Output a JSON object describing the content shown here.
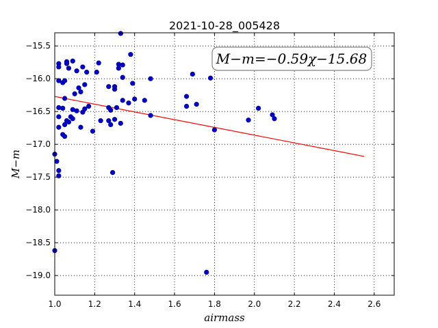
{
  "chart_data": {
    "type": "scatter",
    "title": "2021-10-28_005428",
    "xlabel": "airmass",
    "ylabel": "M−m",
    "xlim": [
      1.0,
      2.7
    ],
    "ylim": [
      -19.3,
      -15.3
    ],
    "y_inverted": true,
    "grid": true,
    "x_ticks": [
      "1.0",
      "1.2",
      "1.4",
      "1.6",
      "1.8",
      "2.0",
      "2.2",
      "2.4",
      "2.6"
    ],
    "y_ticks": [
      "−15.5",
      "−16.0",
      "−16.5",
      "−17.0",
      "−17.5",
      "−18.0",
      "−18.5",
      "−19.0"
    ],
    "annotation": "M−m=−0.59χ−15.68",
    "marker_color": "#0000c8",
    "fit_color": "#ff0000",
    "fit_line": {
      "slope": -0.59,
      "intercept": -15.68,
      "x_range": [
        1.0,
        2.55
      ]
    },
    "points": [
      [
        1.0,
        -17.15
      ],
      [
        1.01,
        -17.26
      ],
      [
        1.02,
        -17.4
      ],
      [
        1.02,
        -17.48
      ],
      [
        1.0,
        -18.62
      ],
      [
        1.02,
        -15.77
      ],
      [
        1.02,
        -15.82
      ],
      [
        1.02,
        -16.03
      ],
      [
        1.04,
        -16.06
      ],
      [
        1.05,
        -16.03
      ],
      [
        1.06,
        -15.74
      ],
      [
        1.06,
        -15.77
      ],
      [
        1.07,
        -15.84
      ],
      [
        1.09,
        -15.73
      ],
      [
        1.1,
        -16.23
      ],
      [
        1.11,
        -15.88
      ],
      [
        1.12,
        -16.14
      ],
      [
        1.13,
        -16.2
      ],
      [
        1.14,
        -15.82
      ],
      [
        1.15,
        -16.09
      ],
      [
        1.16,
        -15.9
      ],
      [
        1.02,
        -16.44
      ],
      [
        1.04,
        -16.45
      ],
      [
        1.05,
        -16.3
      ],
      [
        1.09,
        -16.47
      ],
      [
        1.11,
        -16.49
      ],
      [
        1.14,
        -16.51
      ],
      [
        1.15,
        -16.46
      ],
      [
        1.17,
        -16.42
      ],
      [
        1.02,
        -16.58
      ],
      [
        1.05,
        -16.7
      ],
      [
        1.06,
        -16.64
      ],
      [
        1.07,
        -16.66
      ],
      [
        1.08,
        -16.58
      ],
      [
        1.09,
        -16.61
      ],
      [
        1.02,
        -16.74
      ],
      [
        1.04,
        -16.85
      ],
      [
        1.05,
        -16.88
      ],
      [
        1.13,
        -16.74
      ],
      [
        1.19,
        -16.8
      ],
      [
        1.21,
        -15.9
      ],
      [
        1.22,
        -15.76
      ],
      [
        1.23,
        -16.64
      ],
      [
        1.27,
        -16.12
      ],
      [
        1.27,
        -16.44
      ],
      [
        1.28,
        -16.48
      ],
      [
        1.27,
        -16.64
      ],
      [
        1.28,
        -16.7
      ],
      [
        1.3,
        -16.16
      ],
      [
        1.3,
        -16.12
      ],
      [
        1.3,
        -16.62
      ],
      [
        1.31,
        -16.44
      ],
      [
        1.32,
        -15.78
      ],
      [
        1.32,
        -15.84
      ],
      [
        1.33,
        -16.68
      ],
      [
        1.34,
        -15.79
      ],
      [
        1.34,
        -15.98
      ],
      [
        1.34,
        -16.33
      ],
      [
        1.33,
        -15.31
      ],
      [
        1.29,
        -17.43
      ],
      [
        1.37,
        -16.37
      ],
      [
        1.38,
        -15.63
      ],
      [
        1.39,
        -16.07
      ],
      [
        1.4,
        -16.31
      ],
      [
        1.45,
        -16.33
      ],
      [
        1.48,
        -16.0
      ],
      [
        1.48,
        -16.56
      ],
      [
        1.66,
        -16.27
      ],
      [
        1.66,
        -16.42
      ],
      [
        1.69,
        -15.93
      ],
      [
        1.71,
        -16.39
      ],
      [
        1.76,
        -18.95
      ],
      [
        1.78,
        -15.99
      ],
      [
        1.8,
        -16.78
      ],
      [
        1.97,
        -16.63
      ],
      [
        2.02,
        -16.45
      ],
      [
        2.09,
        -16.55
      ],
      [
        2.1,
        -16.61
      ]
    ]
  }
}
